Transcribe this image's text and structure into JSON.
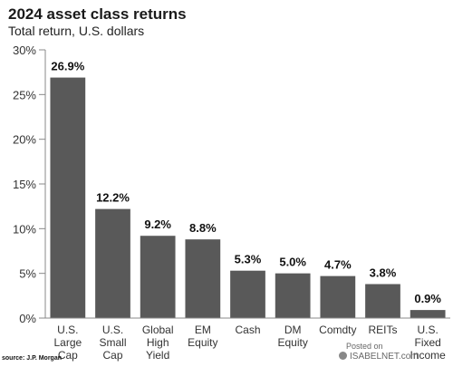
{
  "chart_data": {
    "type": "bar",
    "title": "2024 asset class returns",
    "subtitle": "Total return, U.S. dollars",
    "categories": [
      [
        "U.S.",
        "Large",
        "Cap"
      ],
      [
        "U.S.",
        "Small",
        "Cap"
      ],
      [
        "Global",
        "High",
        "Yield"
      ],
      [
        "EM",
        "Equity"
      ],
      [
        "Cash"
      ],
      [
        "DM",
        "Equity"
      ],
      [
        "Comdty"
      ],
      [
        "REITs"
      ],
      [
        "U.S.",
        "Fixed",
        "Income"
      ]
    ],
    "values": [
      26.9,
      12.2,
      9.2,
      8.8,
      5.3,
      5.0,
      4.7,
      3.8,
      0.9
    ],
    "data_labels": [
      "26.9%",
      "12.2%",
      "9.2%",
      "8.8%",
      "5.3%",
      "5.0%",
      "4.7%",
      "3.8%",
      "0.9%"
    ],
    "ylim": [
      0,
      30
    ],
    "yticks": [
      0,
      5,
      10,
      15,
      20,
      25,
      30
    ],
    "ytick_labels": [
      "0%",
      "5%",
      "10%",
      "15%",
      "20%",
      "25%",
      "30%"
    ],
    "bar_color": "#595959",
    "grid": false,
    "legend": "none"
  },
  "source": "source: J.P. Morgan",
  "watermark": {
    "posted_on": "Posted on",
    "site": "ISABELNET.com"
  }
}
